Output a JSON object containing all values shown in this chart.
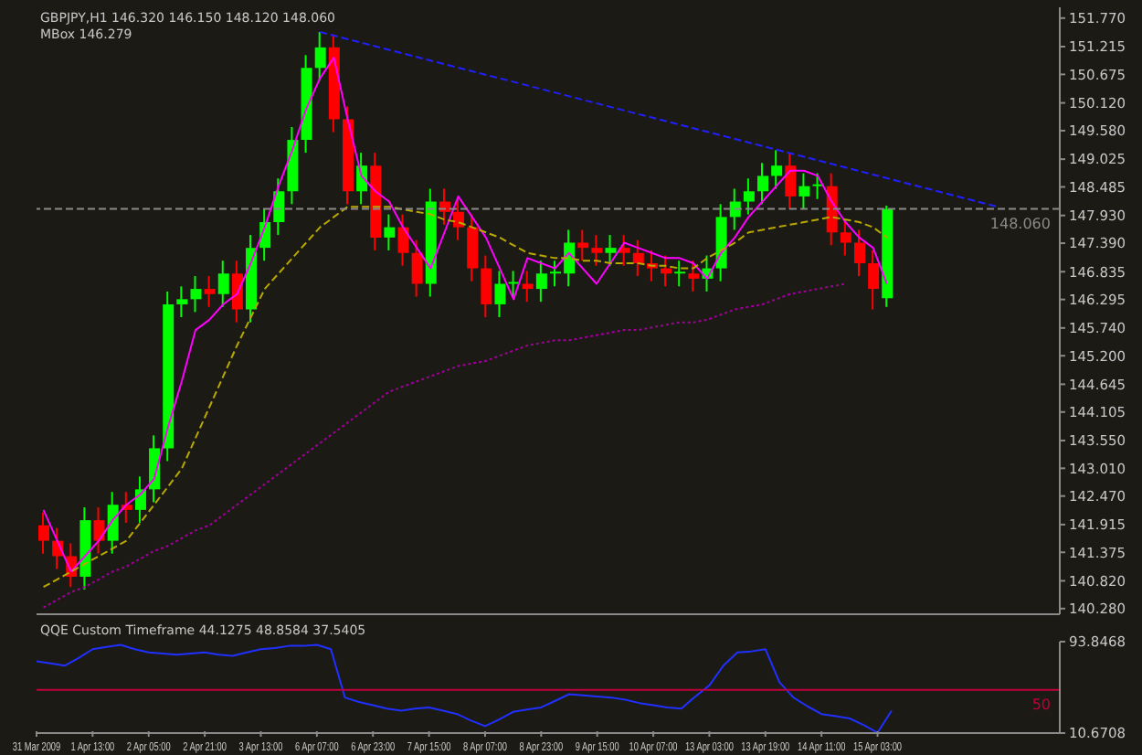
{
  "chart_data": [
    {
      "type": "candlestick",
      "title": "GBPJPY,H1 146.320 146.150 148.120 148.060",
      "subtitle": "MBox 146.279",
      "categories": [
        null,
        null,
        null,
        null,
        null,
        null,
        null,
        null,
        null,
        null,
        null,
        null,
        null,
        null,
        null,
        null,
        null,
        null,
        null,
        null,
        null,
        null,
        null,
        null,
        null,
        null,
        null,
        null,
        null,
        null,
        null,
        null,
        null,
        null,
        null,
        null,
        null,
        null,
        null,
        null,
        null,
        null,
        null,
        null,
        null,
        null,
        null,
        null,
        null,
        null,
        null,
        null,
        null,
        null,
        null,
        null,
        null,
        null,
        null,
        null,
        null,
        null,
        null,
        null,
        null,
        null,
        null,
        null,
        null,
        null,
        null,
        null,
        null,
        null
      ],
      "ohlc": [
        [
          141.9,
          142.15,
          141.35,
          141.6
        ],
        [
          141.6,
          141.85,
          141.05,
          141.3
        ],
        [
          141.3,
          141.55,
          140.7,
          140.9
        ],
        [
          140.9,
          142.25,
          140.65,
          142.0
        ],
        [
          142.0,
          142.25,
          141.35,
          141.6
        ],
        [
          141.6,
          142.55,
          141.35,
          142.3
        ],
        [
          142.3,
          142.55,
          141.95,
          142.2
        ],
        [
          142.2,
          142.85,
          141.95,
          142.6
        ],
        [
          142.6,
          143.65,
          142.35,
          143.4
        ],
        [
          143.4,
          146.45,
          143.15,
          146.2
        ],
        [
          146.2,
          146.55,
          145.95,
          146.3
        ],
        [
          146.3,
          146.75,
          146.05,
          146.5
        ],
        [
          146.5,
          146.75,
          146.15,
          146.4
        ],
        [
          146.4,
          147.05,
          146.15,
          146.8
        ],
        [
          146.8,
          147.05,
          145.85,
          146.1
        ],
        [
          146.1,
          147.55,
          145.85,
          147.3
        ],
        [
          147.3,
          148.05,
          147.05,
          147.8
        ],
        [
          147.8,
          148.65,
          147.55,
          148.4
        ],
        [
          148.4,
          149.65,
          148.15,
          149.4
        ],
        [
          149.4,
          151.05,
          149.15,
          150.8
        ],
        [
          150.8,
          151.5,
          150.55,
          151.2
        ],
        [
          151.2,
          151.45,
          149.55,
          149.8
        ],
        [
          149.8,
          150.05,
          148.15,
          148.4
        ],
        [
          148.4,
          149.15,
          148.15,
          148.9
        ],
        [
          148.9,
          149.15,
          147.25,
          147.5
        ],
        [
          147.5,
          147.95,
          147.25,
          147.7
        ],
        [
          147.7,
          147.95,
          146.95,
          147.2
        ],
        [
          147.2,
          147.45,
          146.35,
          146.6
        ],
        [
          146.6,
          148.45,
          146.35,
          148.2
        ],
        [
          148.2,
          148.45,
          147.75,
          148.0
        ],
        [
          148.0,
          148.25,
          147.45,
          147.7
        ],
        [
          147.7,
          147.95,
          146.65,
          146.9
        ],
        [
          146.9,
          147.15,
          145.95,
          146.2
        ],
        [
          146.2,
          146.85,
          145.95,
          146.6
        ],
        [
          146.6,
          146.85,
          146.35,
          146.6
        ],
        [
          146.6,
          146.85,
          146.25,
          146.5
        ],
        [
          146.5,
          147.05,
          146.25,
          146.8
        ],
        [
          146.8,
          147.05,
          146.55,
          146.8
        ],
        [
          146.8,
          147.65,
          146.55,
          147.4
        ],
        [
          147.4,
          147.65,
          147.05,
          147.3
        ],
        [
          147.3,
          147.55,
          146.95,
          147.2
        ],
        [
          147.2,
          147.55,
          146.95,
          147.3
        ],
        [
          147.3,
          147.55,
          146.95,
          147.2
        ],
        [
          147.2,
          147.45,
          146.75,
          147.0
        ],
        [
          147.0,
          147.25,
          146.65,
          146.9
        ],
        [
          146.9,
          147.15,
          146.55,
          146.8
        ],
        [
          146.8,
          147.05,
          146.55,
          146.8
        ],
        [
          146.8,
          147.05,
          146.45,
          146.7
        ],
        [
          146.7,
          147.15,
          146.45,
          146.9
        ],
        [
          146.9,
          148.15,
          146.65,
          147.9
        ],
        [
          147.9,
          148.45,
          147.65,
          148.2
        ],
        [
          148.2,
          148.65,
          147.95,
          148.4
        ],
        [
          148.4,
          148.95,
          148.15,
          148.7
        ],
        [
          148.7,
          149.2,
          148.45,
          148.9
        ],
        [
          148.9,
          149.15,
          148.05,
          148.3
        ],
        [
          148.3,
          148.75,
          148.05,
          148.5
        ],
        [
          148.5,
          148.75,
          148.25,
          148.5
        ],
        [
          148.5,
          148.75,
          147.35,
          147.6
        ],
        [
          147.6,
          147.85,
          147.15,
          147.4
        ],
        [
          147.4,
          147.65,
          146.75,
          147.0
        ],
        [
          147.0,
          147.25,
          146.1,
          146.5
        ],
        [
          146.32,
          148.12,
          146.15,
          148.06
        ],
        null,
        null,
        null,
        null,
        null,
        null,
        null,
        null,
        null,
        null,
        null,
        null
      ],
      "colors": [
        "#ff0000",
        "#ff0000",
        "#ff0000",
        "#00ff00",
        "#ff0000",
        "#00ff00",
        "#ff0000",
        "#00ff00",
        "#00ff00",
        "#00ff00",
        "#00ff00",
        "#00ff00",
        "#ff0000",
        "#00ff00",
        "#ff0000",
        "#00ff00",
        "#00ff00",
        "#00ff00",
        "#00ff00",
        "#00ff00",
        "#00ff00",
        "#ff0000",
        "#ff0000",
        "#00ff00",
        "#ff0000",
        "#00ff00",
        "#ff0000",
        "#ff0000",
        "#00ff00",
        "#ff0000",
        "#ff0000",
        "#ff0000",
        "#ff0000",
        "#00ff00",
        "#00ff00",
        "#ff0000",
        "#00ff00",
        "#00ff00",
        "#00ff00",
        "#ff0000",
        "#ff0000",
        "#00ff00",
        "#ff0000",
        "#ff0000",
        "#ff0000",
        "#ff0000",
        "#00ff00",
        "#ff0000",
        "#00ff00",
        "#00ff00",
        "#00ff00",
        "#00ff00",
        "#00ff00",
        "#00ff00",
        "#ff0000",
        "#00ff00",
        "#00ff00",
        "#ff0000",
        "#ff0000",
        "#ff0000",
        "#ff0000",
        "#00ff00",
        null,
        null,
        null,
        null,
        null,
        null,
        null,
        null,
        null,
        null,
        null,
        null
      ],
      "series": [
        {
          "type": "line",
          "color": "#ff00ff",
          "line_style": "solid",
          "values": [
            142.2,
            141.6,
            141.0,
            141.3,
            141.6,
            142.0,
            142.3,
            142.5,
            142.8,
            143.8,
            144.7,
            145.7,
            145.9,
            146.2,
            146.4,
            147.0,
            147.7,
            148.5,
            149.2,
            150.0,
            150.6,
            151.0,
            149.8,
            148.7,
            148.4,
            148.2,
            147.7,
            147.3,
            146.9,
            147.6,
            148.3,
            147.9,
            147.5,
            146.9,
            146.3,
            147.1,
            147.0,
            146.9,
            147.2,
            146.9,
            146.6,
            147.0,
            147.4,
            147.3,
            147.2,
            147.1,
            147.1,
            147.0,
            146.7,
            147.2,
            147.5,
            147.9,
            148.2,
            148.5,
            148.8,
            148.8,
            148.7,
            148.2,
            147.8,
            147.5,
            147.3,
            146.6,
            null,
            null,
            null,
            null,
            null,
            null,
            null,
            null,
            null,
            null,
            null,
            null
          ]
        },
        {
          "type": "line",
          "color": "#b8a800",
          "line_style": "dashed",
          "values": [
            140.7,
            140.85,
            141.0,
            141.15,
            141.3,
            141.45,
            141.6,
            141.95,
            142.3,
            142.65,
            143.0,
            143.6,
            144.2,
            144.8,
            145.4,
            145.95,
            146.5,
            146.8,
            147.1,
            147.4,
            147.7,
            147.9,
            148.1,
            148.1,
            148.1,
            148.1,
            148.05,
            148.0,
            147.95,
            147.85,
            147.8,
            147.7,
            147.6,
            147.5,
            147.35,
            147.2,
            147.15,
            147.1,
            147.1,
            147.05,
            147.05,
            147.0,
            147.0,
            147.0,
            146.95,
            146.95,
            146.9,
            146.9,
            147.1,
            147.25,
            147.4,
            147.6,
            147.65,
            147.7,
            147.75,
            147.8,
            147.85,
            147.9,
            147.85,
            147.8,
            147.7,
            147.5,
            null,
            null,
            null,
            null,
            null,
            null,
            null,
            null,
            null,
            null,
            null,
            null
          ]
        },
        {
          "type": "line",
          "color": "#a0009a",
          "line_style": "dotted",
          "values": [
            140.3,
            140.45,
            140.6,
            140.7,
            140.85,
            141.0,
            141.1,
            141.25,
            141.4,
            141.5,
            141.65,
            141.8,
            141.9,
            142.1,
            142.3,
            142.5,
            142.7,
            142.9,
            143.1,
            143.3,
            143.5,
            143.7,
            143.9,
            144.1,
            144.3,
            144.5,
            144.6,
            144.7,
            144.8,
            144.9,
            145.0,
            145.05,
            145.1,
            145.2,
            145.3,
            145.4,
            145.45,
            145.5,
            145.5,
            145.55,
            145.6,
            145.65,
            145.7,
            145.7,
            145.75,
            145.8,
            145.85,
            145.85,
            145.9,
            146.0,
            146.1,
            146.15,
            146.2,
            146.3,
            146.4,
            146.45,
            146.5,
            146.55,
            146.6,
            null,
            null,
            null,
            null,
            null,
            null,
            null,
            null,
            null,
            null,
            null,
            null,
            null,
            null,
            null
          ]
        },
        {
          "type": "line",
          "color": "#2020ff",
          "line_style": "dashed",
          "values": [
            null,
            null,
            null,
            null,
            null,
            null,
            null,
            null,
            null,
            null,
            null,
            null,
            null,
            null,
            null,
            null,
            null,
            null,
            null,
            null,
            151.5,
            null,
            null,
            null,
            null,
            null,
            null,
            null,
            null,
            null,
            null,
            null,
            null,
            null,
            null,
            null,
            null,
            null,
            null,
            null,
            null,
            null,
            null,
            null,
            null,
            null,
            null,
            null,
            null,
            null,
            null,
            null,
            null,
            null,
            null,
            null,
            null,
            null,
            null,
            null,
            null,
            null,
            null,
            null,
            null,
            null,
            null,
            null,
            null,
            148.1,
            null,
            null,
            null,
            null
          ]
        }
      ],
      "ref_lines": [
        {
          "axis": "y",
          "value": 148.06,
          "label": "148.060",
          "color": "#8a8a8a",
          "line_style": "dashed"
        }
      ],
      "ylim": [
        140.17,
        151.98
      ],
      "yticks": [
        {
          "value": 151.77,
          "label": "151.770"
        },
        {
          "value": 151.215,
          "label": "151.215"
        },
        {
          "value": 150.675,
          "label": "150.675"
        },
        {
          "value": 150.12,
          "label": "150.120"
        },
        {
          "value": 149.58,
          "label": "149.580"
        },
        {
          "value": 149.025,
          "label": "149.025"
        },
        {
          "value": 148.485,
          "label": "148.485"
        },
        {
          "value": 147.93,
          "label": "147.930"
        },
        {
          "value": 147.39,
          "label": "147.390"
        },
        {
          "value": 146.835,
          "label": "146.835"
        },
        {
          "value": 146.295,
          "label": "146.295"
        },
        {
          "value": 145.74,
          "label": "145.740"
        },
        {
          "value": 145.2,
          "label": "145.200"
        },
        {
          "value": 144.645,
          "label": "144.645"
        },
        {
          "value": 144.105,
          "label": "144.105"
        },
        {
          "value": 143.55,
          "label": "143.550"
        },
        {
          "value": 143.01,
          "label": "143.010"
        },
        {
          "value": 142.47,
          "label": "142.470"
        },
        {
          "value": 141.915,
          "label": "141.915"
        },
        {
          "value": 141.375,
          "label": "141.375"
        },
        {
          "value": 140.82,
          "label": "140.820"
        },
        {
          "value": 140.28,
          "label": "140.280"
        }
      ],
      "tick_labels": "y"
    },
    {
      "type": "line",
      "title": "QQE Custom Timeframe 44.1275 48.8584 37.5405",
      "categories": [
        "31 Mar 2009",
        null,
        null,
        null,
        "1 Apr 13:00",
        null,
        null,
        null,
        "2 Apr 05:00",
        null,
        null,
        null,
        "2 Apr 21:00",
        null,
        null,
        null,
        "3 Apr 13:00",
        null,
        null,
        null,
        "6 Apr 07:00",
        null,
        null,
        null,
        "6 Apr 23:00",
        null,
        null,
        null,
        "7 Apr 15:00",
        null,
        null,
        null,
        "8 Apr 07:00",
        null,
        null,
        null,
        "8 Apr 23:00",
        null,
        null,
        null,
        "9 Apr 15:00",
        null,
        null,
        null,
        "10 Apr 07:00",
        null,
        null,
        null,
        "13 Apr 03:00",
        null,
        null,
        null,
        "13 Apr 19:00",
        null,
        null,
        null,
        "14 Apr 11:00",
        null,
        null,
        null,
        "15 Apr 03:00",
        null,
        null,
        null,
        null,
        null,
        null,
        null,
        null,
        null,
        null,
        null,
        null,
        null
      ],
      "series": [
        {
          "color": "#2030ff",
          "line_style": "solid",
          "values": [
            76,
            74,
            72,
            79,
            87,
            89,
            91,
            87,
            84,
            83,
            82,
            83,
            84,
            82,
            81,
            84,
            87,
            88,
            90,
            90,
            91,
            87,
            43,
            39,
            36,
            33,
            31,
            33,
            34,
            31,
            28,
            22,
            17,
            23,
            30,
            32,
            34,
            40,
            46,
            45,
            44,
            43,
            41,
            38,
            36,
            34,
            33,
            44,
            54,
            72,
            84,
            85,
            87,
            57,
            43,
            35,
            28,
            26,
            24,
            18,
            11,
            31,
            null,
            null,
            null,
            null,
            null,
            null,
            null,
            null,
            null,
            null,
            null,
            null
          ]
        }
      ],
      "ref_lines": [
        {
          "axis": "y",
          "value": 50,
          "label": "50",
          "color": "#c0003c",
          "line_style": "solid"
        }
      ],
      "ylim": [
        10.6708,
        93.8468
      ],
      "yticks": [
        {
          "value": 93.8468,
          "label": "93.8468"
        },
        {
          "value": 10.6708,
          "label": "10.6708"
        }
      ]
    }
  ]
}
